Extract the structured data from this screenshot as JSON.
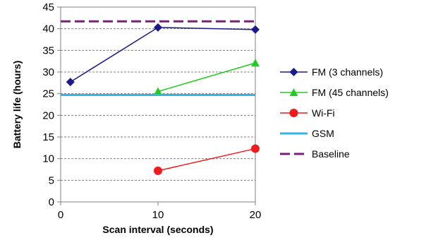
{
  "chart_data": {
    "type": "line",
    "title": "",
    "xlabel": "Scan interval (seconds)",
    "ylabel": "Battery life (hours)",
    "xlim": [
      0,
      20
    ],
    "ylim": [
      0,
      45
    ],
    "x_ticks": [
      0,
      10,
      20
    ],
    "y_ticks": [
      0,
      5,
      10,
      15,
      20,
      25,
      30,
      35,
      40,
      45
    ],
    "grid": "horizontal dashed",
    "legend_position": "right",
    "series": [
      {
        "name": "FM (3 channels)",
        "x": [
          1,
          10,
          20
        ],
        "y": [
          27.7,
          40.3,
          39.8
        ],
        "color": "#1a1a8c",
        "marker": "diamond",
        "style": "solid"
      },
      {
        "name": "FM (45 channels)",
        "x": [
          10,
          20
        ],
        "y": [
          25.5,
          32.1
        ],
        "color": "#22cc22",
        "marker": "triangle",
        "style": "solid"
      },
      {
        "name": "Wi-Fi",
        "x": [
          10,
          20
        ],
        "y": [
          7.2,
          12.3
        ],
        "color": "#ee1c1c",
        "marker": "circle",
        "style": "solid"
      },
      {
        "name": "GSM",
        "y": 24.7,
        "color": "#33b5e5",
        "marker": "none",
        "style": "solid",
        "span": "full"
      },
      {
        "name": "Baseline",
        "y": 41.7,
        "color": "#7b1f7b",
        "marker": "none",
        "style": "dashed",
        "span": "full"
      }
    ]
  }
}
